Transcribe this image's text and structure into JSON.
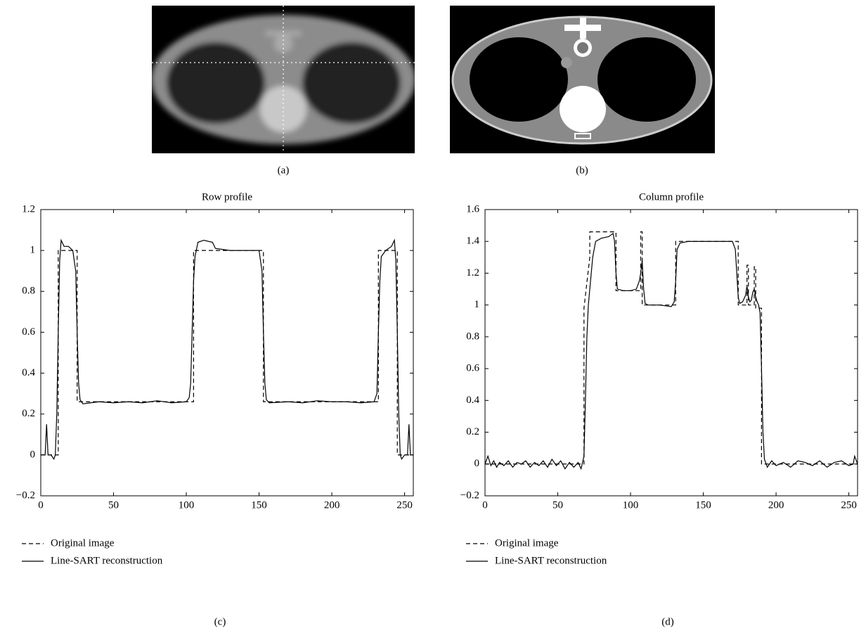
{
  "images": [
    {
      "caption": "(a)"
    },
    {
      "caption": "(b)"
    }
  ],
  "chart_data": [
    {
      "type": "line",
      "title": "Row profile",
      "caption": "(c)",
      "xlim": [
        0,
        256
      ],
      "xticks": [
        0,
        50,
        100,
        150,
        200,
        250
      ],
      "ylim": [
        -0.2,
        1.2
      ],
      "yticks": [
        {
          "value": -0.2,
          "label": "−0.2"
        },
        0,
        0.2,
        0.4,
        0.6,
        0.8,
        1,
        1.2
      ],
      "series": [
        {
          "name": "Original image",
          "color": "#000000",
          "dash": "dashed",
          "x": [
            0,
            12,
            12,
            25,
            25,
            105,
            105,
            153,
            153,
            232,
            232,
            245,
            245,
            256
          ],
          "values": [
            0,
            0,
            1,
            1,
            0.26,
            0.26,
            1,
            1,
            0.26,
            0.26,
            1,
            1,
            0,
            0
          ]
        },
        {
          "name": "Line-SART reconstruction",
          "color": "#000000",
          "dash": "solid",
          "x": [
            0,
            3,
            4,
            5,
            7,
            9,
            10,
            11,
            12,
            13,
            14,
            16,
            19,
            22,
            24,
            25,
            26,
            27,
            29,
            40,
            50,
            60,
            70,
            80,
            90,
            100,
            102,
            103,
            104,
            105,
            106,
            108,
            112,
            118,
            120,
            130,
            140,
            150,
            152,
            153,
            154,
            155,
            157,
            170,
            180,
            190,
            200,
            210,
            220,
            229,
            231,
            232,
            233,
            234,
            237,
            241,
            243,
            244,
            245,
            246,
            247,
            248,
            250,
            252,
            253,
            254,
            256
          ],
          "values": [
            0,
            0,
            0.15,
            0,
            0,
            -0.02,
            0,
            0.2,
            0.6,
            0.95,
            1.05,
            1.02,
            1.02,
            1.0,
            0.9,
            0.6,
            0.35,
            0.27,
            0.25,
            0.26,
            0.255,
            0.26,
            0.255,
            0.265,
            0.255,
            0.26,
            0.28,
            0.35,
            0.6,
            0.85,
            0.97,
            1.04,
            1.05,
            1.04,
            1.01,
            1.0,
            1.0,
            1.0,
            0.9,
            0.6,
            0.35,
            0.27,
            0.255,
            0.26,
            0.255,
            0.265,
            0.26,
            0.26,
            0.255,
            0.26,
            0.3,
            0.6,
            0.85,
            0.97,
            1.0,
            1.02,
            1.05,
            0.95,
            0.6,
            0.2,
            0,
            -0.02,
            0,
            0,
            0.15,
            0,
            0
          ]
        }
      ]
    },
    {
      "type": "line",
      "title": "Column profile",
      "caption": "(d)",
      "xlim": [
        0,
        256
      ],
      "xticks": [
        0,
        50,
        100,
        150,
        200,
        250
      ],
      "ylim": [
        -0.2,
        1.6
      ],
      "yticks": [
        {
          "value": -0.2,
          "label": "−0.2"
        },
        0,
        0.2,
        0.4,
        0.6,
        0.8,
        1,
        1.2,
        1.4,
        1.6
      ],
      "series": [
        {
          "name": "Original image",
          "color": "#000000",
          "dash": "dashed",
          "x": [
            0,
            68,
            68,
            72,
            72,
            90,
            90,
            107,
            107,
            108,
            108,
            131,
            131,
            174,
            174,
            180,
            180,
            181,
            181,
            185,
            185,
            186,
            186,
            190,
            190,
            256
          ],
          "values": [
            0,
            0,
            0.98,
            1.3,
            1.46,
            1.46,
            1.09,
            1.09,
            1.46,
            1.46,
            1.0,
            1.0,
            1.4,
            1.4,
            1.0,
            1.0,
            1.25,
            1.25,
            1.0,
            1.0,
            1.24,
            1.24,
            0.98,
            0.98,
            0,
            0
          ]
        },
        {
          "name": "Line-SART reconstruction",
          "color": "#000000",
          "dash": "solid",
          "x": [
            0,
            2,
            4,
            6,
            8,
            10,
            13,
            16,
            19,
            22,
            25,
            28,
            31,
            34,
            37,
            40,
            43,
            46,
            49,
            52,
            55,
            58,
            61,
            64,
            66,
            68,
            69,
            70,
            71,
            72,
            74,
            76,
            80,
            85,
            88,
            89,
            90,
            91,
            95,
            100,
            104,
            106,
            107,
            108,
            109,
            110,
            112,
            120,
            128,
            130,
            131,
            132,
            134,
            140,
            150,
            160,
            170,
            172,
            173,
            174,
            175,
            177,
            179,
            180,
            181,
            182,
            183,
            184,
            185,
            186,
            187,
            188,
            189,
            190,
            191,
            192,
            194,
            197,
            200,
            205,
            210,
            215,
            220,
            225,
            230,
            235,
            240,
            245,
            250,
            253,
            254,
            256
          ],
          "values": [
            0,
            0.05,
            -0.01,
            0.02,
            -0.02,
            0.01,
            -0.01,
            0.02,
            -0.02,
            0.01,
            0.0,
            0.02,
            -0.02,
            0.01,
            -0.01,
            0.02,
            -0.02,
            0.03,
            -0.01,
            0.02,
            -0.03,
            0.01,
            -0.02,
            0.01,
            -0.03,
            0.05,
            0.4,
            0.8,
            1.0,
            1.1,
            1.3,
            1.4,
            1.42,
            1.43,
            1.45,
            1.4,
            1.2,
            1.1,
            1.09,
            1.09,
            1.1,
            1.15,
            1.2,
            1.28,
            1.1,
            1.01,
            1.0,
            1.0,
            0.99,
            1.02,
            1.15,
            1.35,
            1.39,
            1.4,
            1.4,
            1.4,
            1.4,
            1.35,
            1.2,
            1.05,
            1.01,
            1.02,
            1.06,
            1.12,
            1.05,
            1.02,
            1.03,
            1.08,
            1.1,
            1.05,
            1.02,
            1.0,
            0.95,
            0.6,
            0.2,
            0.03,
            -0.02,
            0.02,
            -0.01,
            0.01,
            -0.02,
            0.02,
            0.01,
            -0.01,
            0.02,
            -0.02,
            0.01,
            0.02,
            -0.01,
            0.0,
            0.05,
            0
          ]
        }
      ]
    }
  ]
}
